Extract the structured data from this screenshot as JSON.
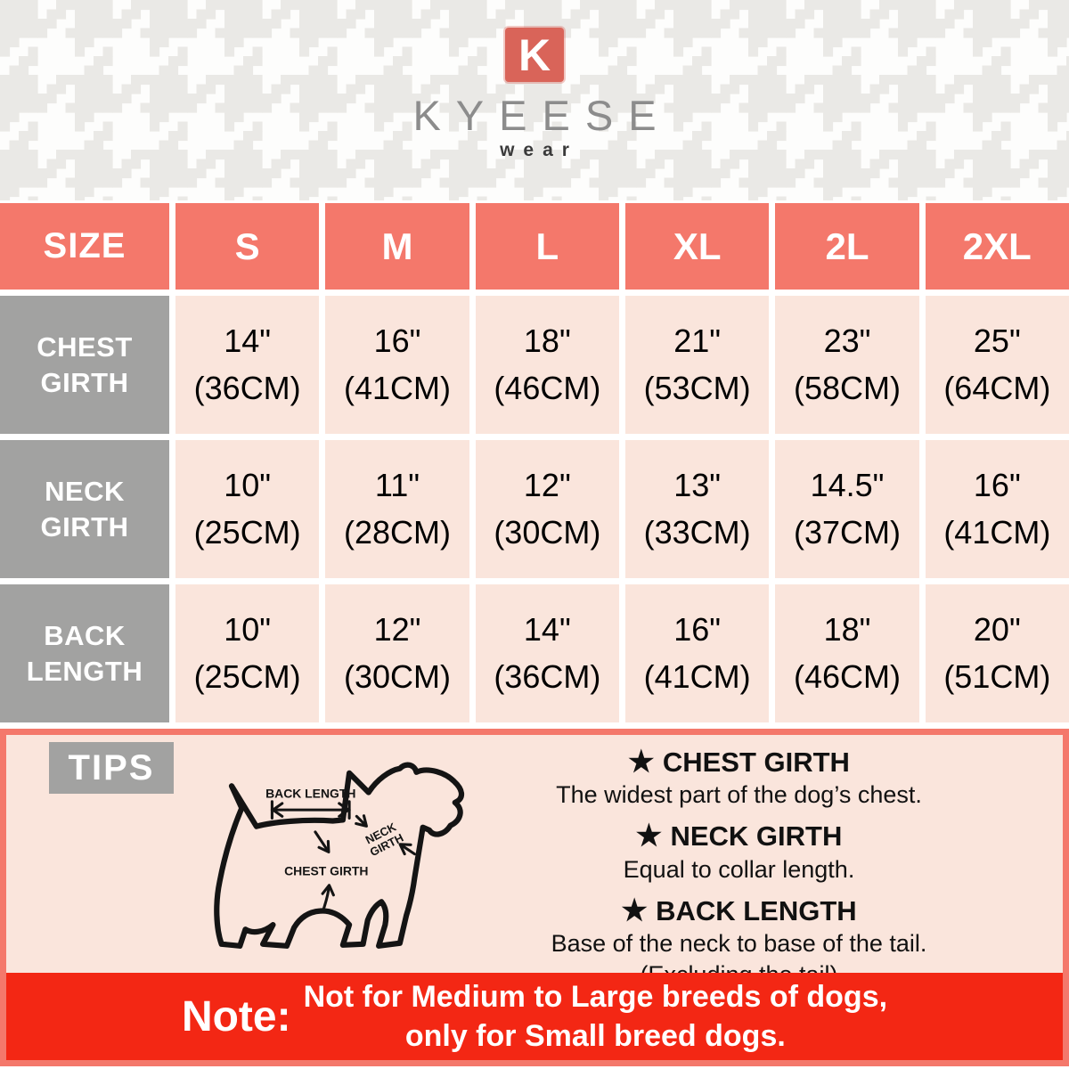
{
  "brand": {
    "initial": "K",
    "name": "KYEESE",
    "subtitle": "wear"
  },
  "size_chart": {
    "header_row": [
      "SIZE",
      "S",
      "M",
      "L",
      "XL",
      "2L",
      "2XL"
    ],
    "rows": [
      {
        "label_lines": [
          "CHEST",
          "GIRTH"
        ],
        "values": [
          [
            "14\"",
            "(36CM)"
          ],
          [
            "16\"",
            "(41CM)"
          ],
          [
            "18\"",
            "(46CM)"
          ],
          [
            "21\"",
            "(53CM)"
          ],
          [
            "23\"",
            "(58CM)"
          ],
          [
            "25\"",
            "(64CM)"
          ]
        ]
      },
      {
        "label_lines": [
          "NECK",
          "GIRTH"
        ],
        "values": [
          [
            "10\"",
            "(25CM)"
          ],
          [
            "11\"",
            "(28CM)"
          ],
          [
            "12\"",
            "(30CM)"
          ],
          [
            "13\"",
            "(33CM)"
          ],
          [
            "14.5\"",
            "(37CM)"
          ],
          [
            "16\"",
            "(41CM)"
          ]
        ]
      },
      {
        "label_lines": [
          "BACK",
          "LENGTH"
        ],
        "values": [
          [
            "10\"",
            "(25CM)"
          ],
          [
            "12\"",
            "(30CM)"
          ],
          [
            "14\"",
            "(36CM)"
          ],
          [
            "16\"",
            "(41CM)"
          ],
          [
            "18\"",
            "(46CM)"
          ],
          [
            "20\"",
            "(51CM)"
          ]
        ]
      }
    ]
  },
  "tips": {
    "title": "TIPS",
    "star": "★",
    "diagram": {
      "back_length": "BACK LENGTH",
      "neck_line1": "NECK",
      "neck_line2": "GIRTH",
      "chest_girth": "CHEST GIRTH"
    },
    "items": [
      {
        "heading": "CHEST GIRTH",
        "lines": [
          "The widest part of the dog’s chest."
        ]
      },
      {
        "heading": "NECK GIRTH",
        "lines": [
          "Equal to collar length."
        ]
      },
      {
        "heading": "BACK LENGTH",
        "lines": [
          "Base of the neck to base of the tail.",
          "(Excluding the tail)"
        ]
      }
    ]
  },
  "note": {
    "label": "Note:",
    "lines": [
      "Not for Medium to Large breeds of dogs,",
      "only for Small breed dogs."
    ]
  },
  "colors": {
    "coral": "#f4786b",
    "cell_pink": "#fae5dc",
    "label_gray": "#a2a2a1",
    "note_red": "#f32714",
    "logo_red": "#d96459",
    "brand_gray": "#8c8c8c",
    "pattern_gray": "#eae9e6"
  }
}
